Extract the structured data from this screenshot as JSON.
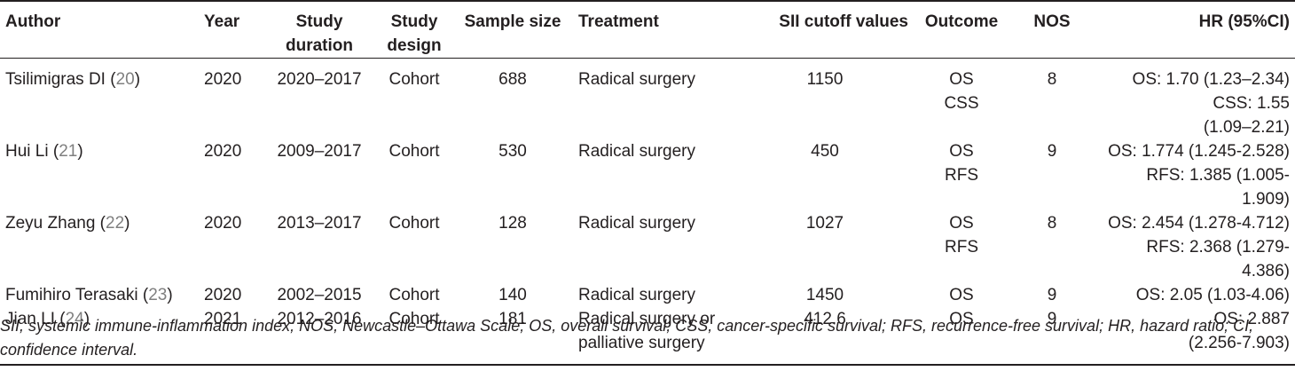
{
  "headers": {
    "author": "Author",
    "year": "Year",
    "duration_1": "Study",
    "duration_2": "duration",
    "design_1": "Study",
    "design_2": "design",
    "sample": "Sample size",
    "treatment": "Treatment",
    "cutoff": "SII cutoff values",
    "outcome": "Outcome",
    "nos": "NOS",
    "hr": "HR (95%CI)"
  },
  "rows": [
    {
      "author": "Tsilimigras DI",
      "ref": "20",
      "year": "2020",
      "duration": "2020–2017",
      "design": "Cohort",
      "sample": "688",
      "treatment_1": "Radical surgery",
      "treatment_2": "",
      "cutoff": "1150",
      "outcome_1": "OS",
      "outcome_2": "CSS",
      "nos": "8",
      "hr_1": "OS: 1.70 (1.23–2.34)",
      "hr_2": "CSS: 1.55",
      "hr_3": "(1.09–2.21)"
    },
    {
      "author": "Hui Li",
      "ref": "21",
      "year": "2020",
      "duration": "2009–2017",
      "design": "Cohort",
      "sample": "530",
      "treatment_1": "Radical surgery",
      "treatment_2": "",
      "cutoff": "450",
      "outcome_1": "OS",
      "outcome_2": "RFS",
      "nos": "9",
      "hr_1": "OS: 1.774 (1.245-2.528)",
      "hr_2": "RFS: 1.385 (1.005-1.909)",
      "hr_3": ""
    },
    {
      "author": "Zeyu Zhang",
      "ref": "22",
      "year": "2020",
      "duration": "2013–2017",
      "design": "Cohort",
      "sample": "128",
      "treatment_1": "Radical surgery",
      "treatment_2": "",
      "cutoff": "1027",
      "outcome_1": "OS",
      "outcome_2": "RFS",
      "nos": "8",
      "hr_1": "OS: 2.454 (1.278-4.712)",
      "hr_2": "RFS: 2.368 (1.279-4.386)",
      "hr_3": ""
    },
    {
      "author": "Fumihiro Terasaki",
      "ref": "23",
      "year": "2020",
      "duration": "2002–2015",
      "design": "Cohort",
      "sample": "140",
      "treatment_1": "Radical surgery",
      "treatment_2": "",
      "cutoff": "1450",
      "outcome_1": "OS",
      "outcome_2": "",
      "nos": "9",
      "hr_1": "OS: 2.05 (1.03-4.06)",
      "hr_2": "",
      "hr_3": ""
    },
    {
      "author": "Jian LI",
      "ref": "24",
      "year": "2021",
      "duration": "2012–2016",
      "design": "Cohort",
      "sample": "181",
      "treatment_1": "Radical surgery or",
      "treatment_2": "palliative surgery",
      "cutoff": "412.6",
      "outcome_1": "OS",
      "outcome_2": "",
      "nos": "9",
      "hr_1": "OS: 2.887",
      "hr_2": "(2.256-7.903)",
      "hr_3": ""
    }
  ],
  "footnote_1": "SII, systemic immune-inflammation index; NOS, Newcastle–Ottawa Scale; OS, overall survival; CSS, cancer-specific survival; RFS, recurrence-free survival; HR, hazard ratio; CI,",
  "footnote_2": "confidence interval."
}
